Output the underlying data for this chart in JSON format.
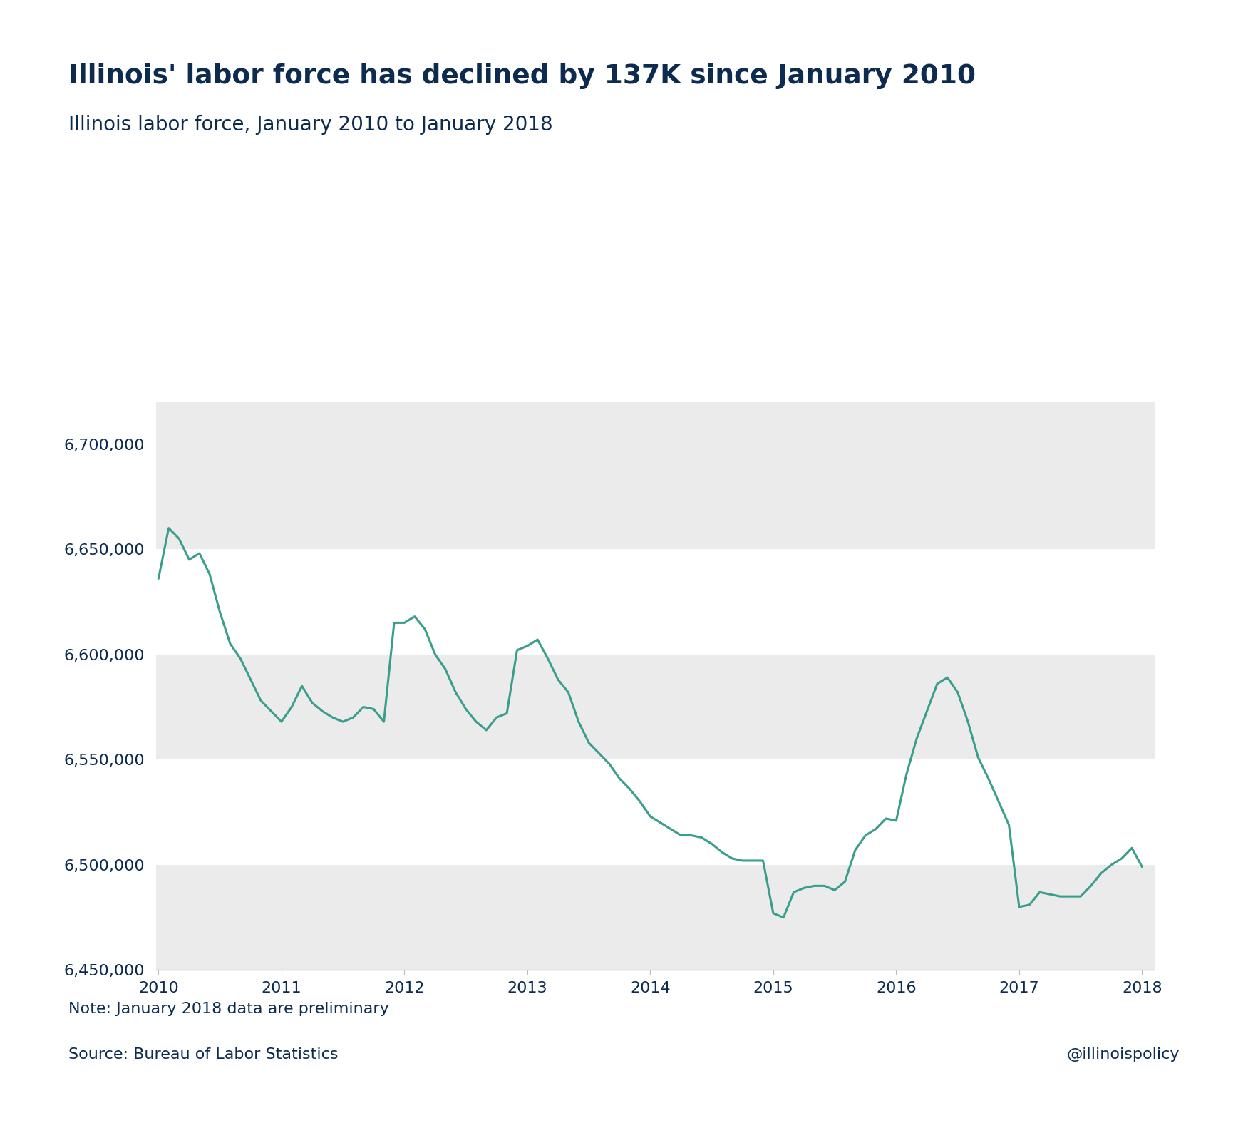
{
  "title": "Illinois' labor force has declined by 137K since January 2010",
  "subtitle": "Illinois labor force, January 2010 to January 2018",
  "note": "Note: January 2018 data are preliminary",
  "source": "Source: Bureau of Labor Statistics",
  "watermark": "@illinoispolicy",
  "title_color": "#0d2b4e",
  "line_color": "#3a9e8c",
  "background_color": "#ffffff",
  "band_color": "#ebebeb",
  "ylim": [
    6450000,
    6720000
  ],
  "yticks": [
    6450000,
    6500000,
    6550000,
    6600000,
    6650000,
    6700000
  ],
  "x_labels": [
    "2010",
    "2011",
    "2012",
    "2013",
    "2014",
    "2015",
    "2016",
    "2017",
    "2018"
  ],
  "values": [
    6636000,
    6660000,
    6655000,
    6645000,
    6648000,
    6638000,
    6620000,
    6605000,
    6598000,
    6588000,
    6578000,
    6573000,
    6568000,
    6575000,
    6585000,
    6577000,
    6573000,
    6570000,
    6568000,
    6570000,
    6575000,
    6574000,
    6568000,
    6615000,
    6615000,
    6618000,
    6612000,
    6600000,
    6593000,
    6582000,
    6574000,
    6568000,
    6564000,
    6570000,
    6572000,
    6602000,
    6604000,
    6607000,
    6598000,
    6588000,
    6582000,
    6568000,
    6558000,
    6553000,
    6548000,
    6541000,
    6536000,
    6530000,
    6523000,
    6520000,
    6517000,
    6514000,
    6514000,
    6513000,
    6510000,
    6506000,
    6503000,
    6502000,
    6502000,
    6502000,
    6477000,
    6475000,
    6487000,
    6489000,
    6490000,
    6490000,
    6488000,
    6492000,
    6507000,
    6514000,
    6517000,
    6522000,
    6521000,
    6543000,
    6560000,
    6573000,
    6586000,
    6589000,
    6582000,
    6568000,
    6551000,
    6541000,
    6530000,
    6519000,
    6480000,
    6481000,
    6487000,
    6486000,
    6485000,
    6485000,
    6485000,
    6490000,
    6496000,
    6500000,
    6503000,
    6508000,
    6499000
  ]
}
